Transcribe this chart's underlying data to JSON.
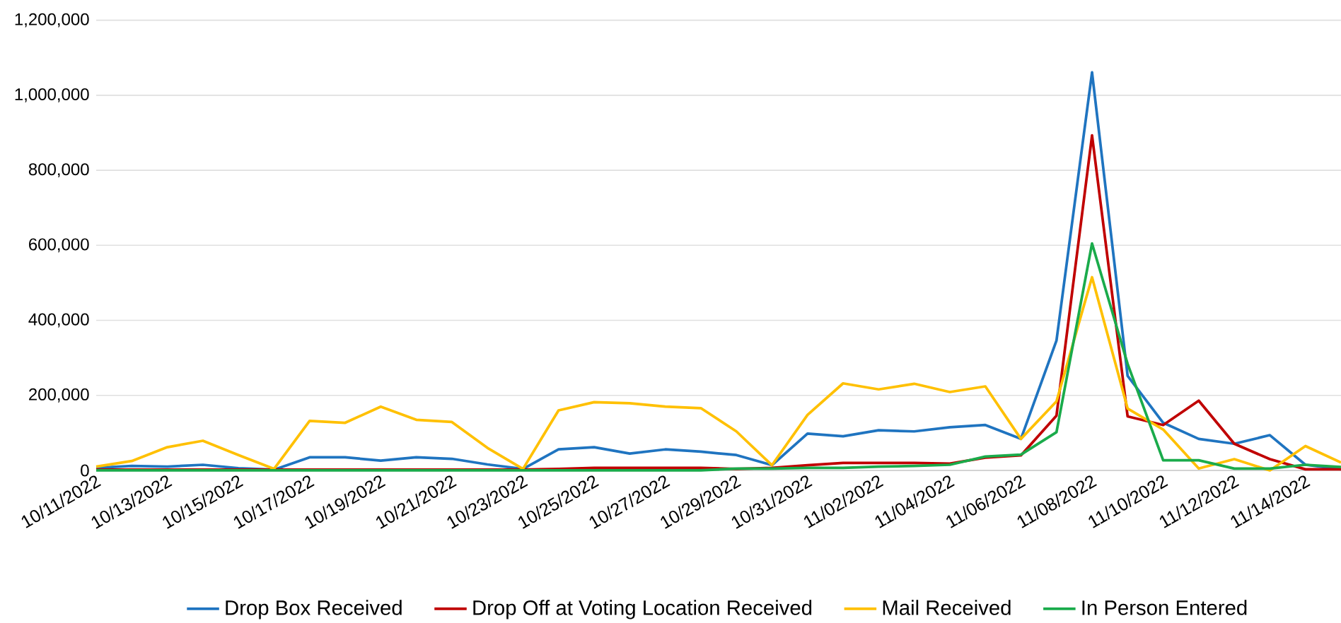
{
  "chart_data": {
    "type": "line",
    "categories": [
      "10/11/2022",
      null,
      "10/13/2022",
      null,
      "10/15/2022",
      null,
      "10/17/2022",
      null,
      "10/19/2022",
      null,
      "10/21/2022",
      null,
      "10/23/2022",
      null,
      "10/25/2022",
      null,
      "10/27/2022",
      null,
      "10/29/2022",
      null,
      "10/31/2022",
      null,
      "11/02/2022",
      null,
      "11/04/2022",
      null,
      "11/06/2022",
      null,
      "11/08/2022",
      null,
      "11/10/2022",
      null,
      "11/12/2022",
      null,
      "11/14/2022",
      null
    ],
    "series": [
      {
        "name": "Drop Box Received",
        "color": "#1f74c0",
        "values": [
          7000,
          12000,
          10000,
          15000,
          6000,
          2000,
          35000,
          35000,
          26000,
          35000,
          31000,
          16000,
          4000,
          56000,
          62000,
          45000,
          56000,
          50000,
          41000,
          14000,
          98000,
          91000,
          107000,
          104000,
          115000,
          121000,
          84000,
          346000,
          1061000,
          252000,
          127000,
          84000,
          71000,
          94000,
          15000,
          3000
        ]
      },
      {
        "name": "Drop Off at Voting Location Received",
        "color": "#c00000",
        "values": [
          2000,
          2000,
          2000,
          2000,
          2000,
          2000,
          2000,
          2000,
          2000,
          2000,
          2000,
          2000,
          2000,
          4000,
          7000,
          7000,
          7000,
          7000,
          4000,
          7000,
          14000,
          20000,
          20000,
          20000,
          18000,
          34000,
          40000,
          146000,
          893000,
          144000,
          121000,
          186000,
          71000,
          30000,
          3000,
          3000
        ]
      },
      {
        "name": "Mail Received",
        "color": "#ffc000",
        "values": [
          10000,
          25000,
          62000,
          79000,
          41000,
          4000,
          132000,
          127000,
          170000,
          135000,
          129000,
          60000,
          4000,
          160000,
          182000,
          179000,
          170000,
          166000,
          104000,
          14000,
          148000,
          232000,
          216000,
          231000,
          209000,
          224000,
          84000,
          184000,
          515000,
          165000,
          109000,
          5000,
          30000,
          0,
          65000,
          21000
        ]
      },
      {
        "name": "In Person Entered",
        "color": "#1aab4b",
        "values": [
          0,
          0,
          0,
          0,
          0,
          0,
          0,
          0,
          0,
          0,
          0,
          0,
          0,
          0,
          0,
          0,
          0,
          0,
          5000,
          5000,
          7000,
          7000,
          10000,
          12000,
          15000,
          37000,
          42000,
          102000,
          605000,
          284000,
          27000,
          27000,
          5000,
          5000,
          15000,
          9000
        ]
      }
    ],
    "ylim": [
      0,
      1200000
    ],
    "yticks": [
      {
        "value": 0,
        "label": "0"
      },
      {
        "value": 200000,
        "label": "200,000"
      },
      {
        "value": 400000,
        "label": "400,000"
      },
      {
        "value": 600000,
        "label": "600,000"
      },
      {
        "value": 800000,
        "label": "800,000"
      },
      {
        "value": 1000000,
        "label": "1,000,000"
      },
      {
        "value": 1200000,
        "label": "1,200,000"
      }
    ],
    "grid": "y",
    "legend": "bottom",
    "marker": "none",
    "line_style": "solid"
  }
}
